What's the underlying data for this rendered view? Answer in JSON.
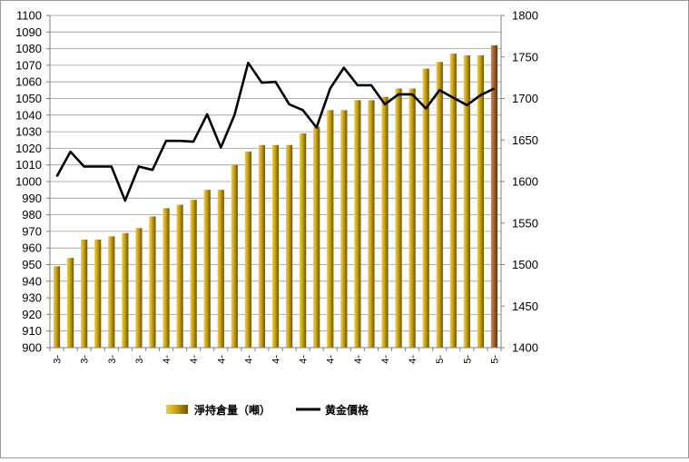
{
  "chart_data": {
    "type": "bar+line",
    "title": "",
    "categories": [
      "3-",
      "",
      "3-",
      "",
      "3-",
      "",
      "3-",
      "",
      "4-",
      "",
      "4-",
      "",
      "4-",
      "",
      "4-",
      "",
      "4-",
      "",
      "4-",
      "",
      "4-",
      "",
      "4-",
      "",
      "4-",
      "",
      "4-",
      "",
      "5-",
      "",
      "5-",
      "",
      "5-"
    ],
    "y_left": {
      "min": 900,
      "max": 1100,
      "step": 10,
      "ticks": [
        "900",
        "910",
        "920",
        "930",
        "940",
        "950",
        "960",
        "970",
        "980",
        "990",
        "1000",
        "1010",
        "1020",
        "1030",
        "1040",
        "1050",
        "1060",
        "1070",
        "1080",
        "1090",
        "1100"
      ]
    },
    "y_right": {
      "min": 1400,
      "max": 1800,
      "step": 50,
      "ticks": [
        "1400",
        "1450",
        "1500",
        "1550",
        "1600",
        "1650",
        "1700",
        "1750",
        "1800"
      ]
    },
    "series": [
      {
        "name": "淨持倉量（噸）",
        "type": "bar",
        "axis": "left",
        "color": "#c8a018",
        "last_color": "#a0642a",
        "values": [
          949,
          954,
          965,
          965,
          967,
          969,
          972,
          979,
          984,
          986,
          989,
          995,
          995,
          1010,
          1018,
          1022,
          1022,
          1022,
          1029,
          1033,
          1043,
          1043,
          1049,
          1049,
          1051,
          1056,
          1056,
          1068,
          1072,
          1077,
          1076,
          1076,
          1082
        ]
      },
      {
        "name": "黄金價格",
        "type": "line",
        "axis": "right",
        "color": "#000000",
        "values": [
          1606,
          1636,
          1618,
          1618,
          1618,
          1577,
          1618,
          1614,
          1649,
          1649,
          1648,
          1681,
          1641,
          1680,
          1743,
          1719,
          1720,
          1693,
          1686,
          1665,
          1712,
          1737,
          1716,
          1716,
          1693,
          1705,
          1705,
          1688,
          1710,
          1701,
          1692,
          1704,
          1712
        ]
      }
    ],
    "grid": true,
    "legend_position": "bottom"
  }
}
